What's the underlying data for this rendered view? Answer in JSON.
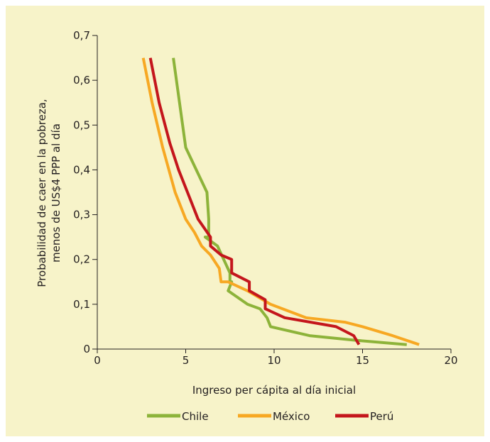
{
  "chart_data": {
    "type": "line",
    "title": "",
    "xlabel": "Ingreso per cápita al día inicial",
    "ylabel_lines": [
      "Probabilidad de caer en la pobreza,",
      "menos de US$4 PPP al día"
    ],
    "xlim": [
      0,
      20
    ],
    "ylim": [
      0,
      0.7
    ],
    "x_ticks": [
      0,
      5,
      10,
      15,
      20
    ],
    "x_tick_labels": [
      "0",
      "5",
      "10",
      "15",
      "20"
    ],
    "y_ticks": [
      0,
      0.1,
      0.2,
      0.3,
      0.4,
      0.5,
      0.6,
      0.7
    ],
    "y_tick_labels": [
      "0",
      "0,1",
      "0,2",
      "0,3",
      "0,4",
      "0,5",
      "0,6",
      "0,7"
    ],
    "grid": false,
    "legend_position": "bottom",
    "series": [
      {
        "name": "Chile",
        "color": "#8db33a",
        "x": [
          4.3,
          5.0,
          5.6,
          6.2,
          6.3,
          6.3,
          6.1,
          6.8,
          7.5,
          7.5,
          7.6,
          7.4,
          8.5,
          9.2,
          9.6,
          9.8,
          12.0,
          14.5,
          17.5
        ],
        "y": [
          0.65,
          0.45,
          0.4,
          0.35,
          0.29,
          0.25,
          0.25,
          0.23,
          0.17,
          0.15,
          0.15,
          0.13,
          0.1,
          0.09,
          0.07,
          0.05,
          0.03,
          0.02,
          0.01
        ]
      },
      {
        "name": "México",
        "color": "#f7a823",
        "x": [
          2.6,
          3.1,
          3.7,
          4.4,
          5.0,
          5.5,
          5.9,
          6.4,
          6.9,
          7.0,
          7.4,
          8.5,
          9.8,
          11.8,
          14.0,
          15.0,
          16.7,
          18.2
        ],
        "y": [
          0.65,
          0.55,
          0.45,
          0.35,
          0.29,
          0.26,
          0.23,
          0.21,
          0.18,
          0.15,
          0.15,
          0.13,
          0.1,
          0.07,
          0.06,
          0.05,
          0.03,
          0.01
        ]
      },
      {
        "name": "Perú",
        "color": "#c4161c",
        "x": [
          3.0,
          3.5,
          4.1,
          4.6,
          5.2,
          5.7,
          6.4,
          6.4,
          7.0,
          7.6,
          7.6,
          8.6,
          8.6,
          9.5,
          9.5,
          10.6,
          13.5,
          14.5,
          14.8
        ],
        "y": [
          0.65,
          0.55,
          0.46,
          0.4,
          0.34,
          0.29,
          0.25,
          0.23,
          0.21,
          0.2,
          0.17,
          0.15,
          0.13,
          0.11,
          0.09,
          0.07,
          0.05,
          0.03,
          0.01
        ]
      }
    ]
  }
}
